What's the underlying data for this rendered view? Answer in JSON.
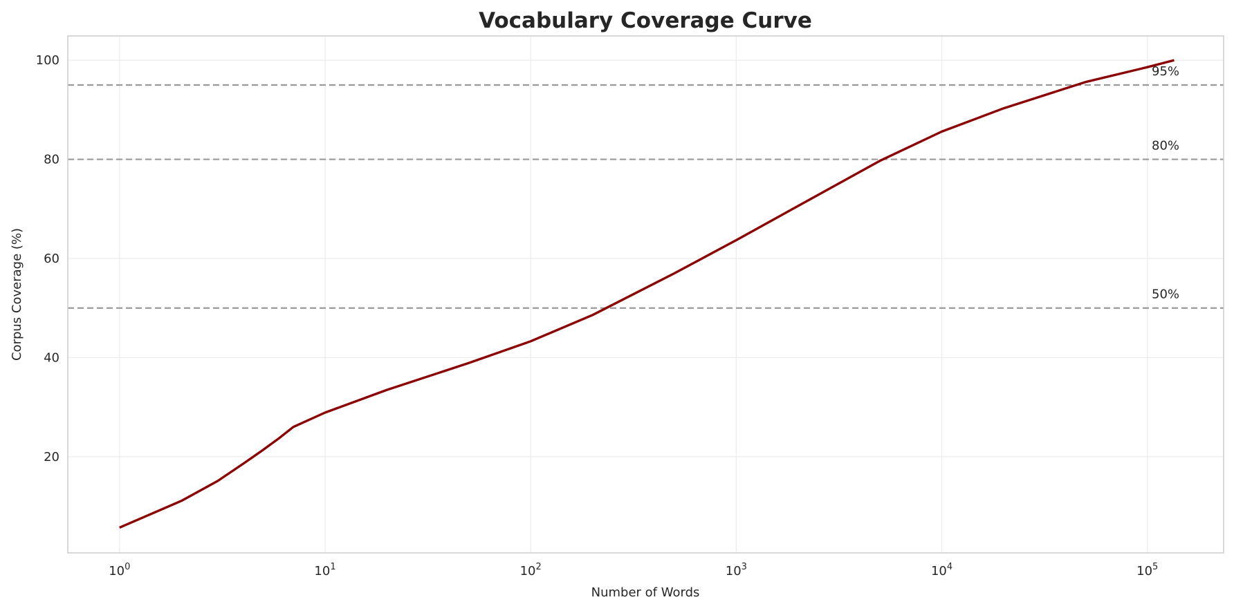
{
  "chart_data": {
    "type": "line",
    "title": "Vocabulary Coverage Curve",
    "xlabel": "Number of Words",
    "ylabel": "Corpus Coverage (%)",
    "xscale": "log",
    "xlim": [
      0.56,
      235000
    ],
    "ylim": [
      0.6,
      104.9
    ],
    "grid": true,
    "x_ticks": [
      {
        "base": "10",
        "exp": "0",
        "value": 1
      },
      {
        "base": "10",
        "exp": "1",
        "value": 10
      },
      {
        "base": "10",
        "exp": "2",
        "value": 100
      },
      {
        "base": "10",
        "exp": "3",
        "value": 1000
      },
      {
        "base": "10",
        "exp": "4",
        "value": 10000
      },
      {
        "base": "10",
        "exp": "5",
        "value": 100000
      }
    ],
    "y_ticks": [
      {
        "label": "20",
        "value": 20
      },
      {
        "label": "40",
        "value": 40
      },
      {
        "label": "60",
        "value": 60
      },
      {
        "label": "80",
        "value": 80
      },
      {
        "label": "100",
        "value": 100
      }
    ],
    "line_color": "#8b0000",
    "reference_color": "#999999",
    "reference_lines": [
      {
        "value": 50,
        "label": "50%"
      },
      {
        "value": 80,
        "label": "80%"
      },
      {
        "value": 95,
        "label": "95%"
      }
    ],
    "series": [
      {
        "x": [
          1,
          2,
          3,
          4,
          5,
          6,
          7,
          10,
          20,
          50,
          100,
          200,
          500,
          1000,
          2000,
          5000,
          10000,
          20000,
          50000,
          100000,
          135000
        ],
        "y": [
          5.7,
          11.1,
          15.1,
          18.6,
          21.4,
          23.8,
          26.0,
          28.9,
          33.5,
          38.9,
          43.3,
          48.6,
          57.0,
          63.7,
          70.6,
          79.7,
          85.6,
          90.3,
          95.6,
          98.6,
          100.0
        ]
      }
    ]
  }
}
